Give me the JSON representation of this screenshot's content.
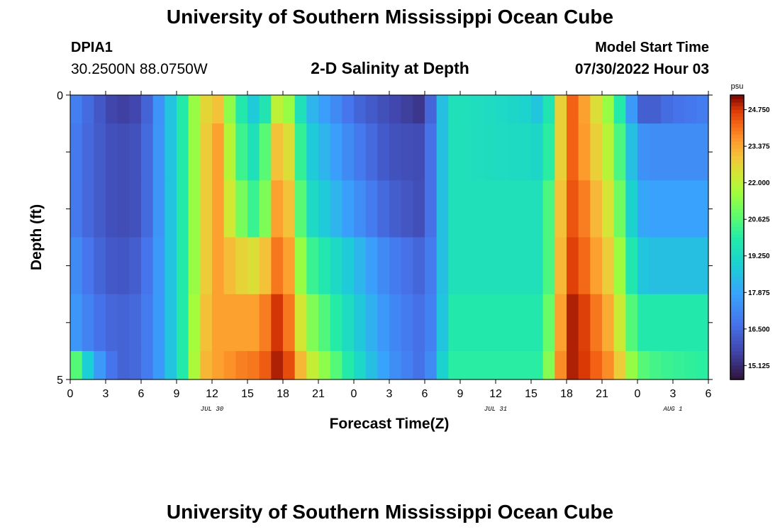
{
  "header": {
    "title": "University of Southern Mississippi Ocean Cube",
    "station_id": "DPIA1",
    "station_coords": "30.2500N  88.0750W",
    "subtitle": "2-D Salinity at Depth",
    "model_label": "Model Start Time",
    "model_time": "07/30/2022 Hour 03"
  },
  "footer": {
    "title": "University of Southern Mississippi Ocean Cube"
  },
  "chart_data": {
    "type": "heatmap",
    "title": "2-D Salinity at Depth",
    "xlabel": "Forecast Time(Z)",
    "ylabel": "Depth (ft)",
    "colorbar_unit": "psu",
    "colorbar_ticks": [
      "24.750",
      "23.375",
      "22.000",
      "20.625",
      "19.250",
      "17.875",
      "16.500",
      "15.125"
    ],
    "color_range": [
      14.6,
      25.3
    ],
    "x_range": [
      0,
      54
    ],
    "y_range": [
      0,
      5
    ],
    "x_tick_labels": [
      "0",
      "3",
      "6",
      "9",
      "12",
      "15",
      "18",
      "21",
      "0",
      "3",
      "6",
      "9",
      "12",
      "15",
      "18",
      "21",
      "0",
      "3",
      "6"
    ],
    "date_labels": [
      {
        "hour": 12,
        "label": "JUL 30"
      },
      {
        "hour": 36,
        "label": "JUL 31"
      },
      {
        "hour": 51,
        "label": "AUG 1"
      }
    ],
    "y_tick_labels": [
      {
        "depth": 0,
        "label": "0"
      },
      {
        "depth": 5,
        "label": "5"
      }
    ],
    "depth_rows": [
      {
        "depth_top": 0.0,
        "depth_bottom": 0.5
      },
      {
        "depth_top": 0.5,
        "depth_bottom": 1.5
      },
      {
        "depth_top": 1.5,
        "depth_bottom": 2.5
      },
      {
        "depth_top": 2.5,
        "depth_bottom": 3.5
      },
      {
        "depth_top": 3.5,
        "depth_bottom": 4.5
      },
      {
        "depth_top": 4.5,
        "depth_bottom": 5.0
      }
    ],
    "keyframes": {
      "hours": [
        0,
        2,
        4,
        6,
        8,
        10,
        11,
        12.5,
        15,
        16,
        17.5,
        18.5,
        20,
        24,
        27,
        30,
        31,
        32,
        33,
        37,
        39,
        40,
        41,
        42,
        43,
        46,
        48,
        49,
        50,
        54
      ],
      "salinity_by_row": [
        [
          17.2,
          16.3,
          15.5,
          15.8,
          18.0,
          20.5,
          22.5,
          23.0,
          19.0,
          18.5,
          22.0,
          21.5,
          18.5,
          16.5,
          15.8,
          15.3,
          17.5,
          19.5,
          19.5,
          19.2,
          19.0,
          18.3,
          21.0,
          24.5,
          24.0,
          21.0,
          16.5,
          16.0,
          16.5,
          17.0
        ],
        [
          17.0,
          16.3,
          15.8,
          16.0,
          18.0,
          20.5,
          22.5,
          23.5,
          19.5,
          19.5,
          23.0,
          22.5,
          19.0,
          17.0,
          16.0,
          15.8,
          17.5,
          19.5,
          19.5,
          19.3,
          19.3,
          19.0,
          21.0,
          24.5,
          24.0,
          21.5,
          17.5,
          17.3,
          17.3,
          17.3
        ],
        [
          17.0,
          16.3,
          15.8,
          16.0,
          18.0,
          20.5,
          22.5,
          23.5,
          20.5,
          20.0,
          23.5,
          23.0,
          19.5,
          17.5,
          16.3,
          15.8,
          17.5,
          19.5,
          19.5,
          19.5,
          19.5,
          19.5,
          21.5,
          24.5,
          24.3,
          22.0,
          18.0,
          17.8,
          17.8,
          17.8
        ],
        [
          17.5,
          16.5,
          16.0,
          16.3,
          18.0,
          20.5,
          22.5,
          23.5,
          22.5,
          22.5,
          24.0,
          23.5,
          20.5,
          18.5,
          17.0,
          16.3,
          17.5,
          19.5,
          19.5,
          19.5,
          19.5,
          19.5,
          21.5,
          24.8,
          24.5,
          22.5,
          18.8,
          18.5,
          18.5,
          18.5
        ],
        [
          17.8,
          16.8,
          16.3,
          16.5,
          18.0,
          20.5,
          22.8,
          23.5,
          23.5,
          23.5,
          24.8,
          24.0,
          21.5,
          19.0,
          17.3,
          16.5,
          17.5,
          19.8,
          19.8,
          19.8,
          19.8,
          19.8,
          22.0,
          25.0,
          25.0,
          23.0,
          19.8,
          19.8,
          19.8,
          19.8
        ],
        [
          21.5,
          18.0,
          16.3,
          16.5,
          18.0,
          20.5,
          23.0,
          23.5,
          24.0,
          24.0,
          25.0,
          24.5,
          22.5,
          19.5,
          17.5,
          16.5,
          18.0,
          20.0,
          20.0,
          20.0,
          20.0,
          20.0,
          22.5,
          25.0,
          25.0,
          23.5,
          20.8,
          20.5,
          20.3,
          20.0
        ]
      ]
    }
  }
}
